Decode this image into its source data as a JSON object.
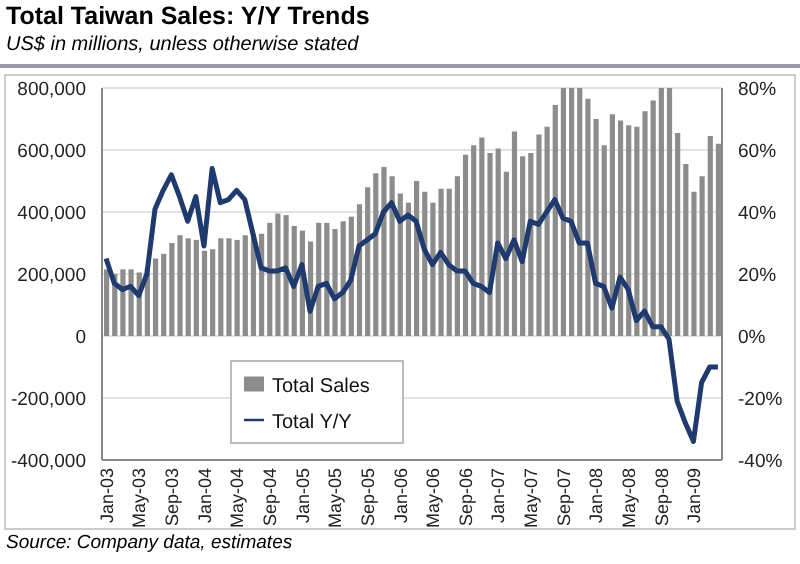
{
  "chart_data": {
    "type": "bar",
    "title": "Total Taiwan Sales: Y/Y Trends",
    "subtitle": "US$ in millions, unless otherwise stated",
    "annotations": [
      "Source: Company data, estimates"
    ],
    "categories": [
      "Jan-03",
      null,
      null,
      null,
      "May-03",
      null,
      null,
      null,
      "Sep-03",
      null,
      null,
      null,
      "Jan-04",
      null,
      null,
      null,
      "May-04",
      null,
      null,
      null,
      "Sep-04",
      null,
      null,
      null,
      "Jan-05",
      null,
      null,
      null,
      "May-05",
      null,
      null,
      null,
      "Sep-05",
      null,
      null,
      null,
      "Jan-06",
      null,
      null,
      null,
      "May-06",
      null,
      null,
      null,
      "Sep-06",
      null,
      null,
      null,
      "Jan-07",
      null,
      null,
      null,
      "May-07",
      null,
      null,
      null,
      "Sep-07",
      null,
      null,
      null,
      "Jan-08",
      null,
      null,
      null,
      "May-08",
      null,
      null,
      null,
      "Sep-08",
      null,
      null,
      null,
      "Jan-09",
      null,
      null,
      null
    ],
    "series": [
      {
        "name": "Total Sales",
        "color": "#8c8c8c",
        "values": [
          215000,
          200000,
          215000,
          215000,
          205000,
          220000,
          250000,
          265000,
          300000,
          325000,
          315000,
          310000,
          275000,
          280000,
          315000,
          315000,
          310000,
          325000,
          330000,
          330000,
          365000,
          395000,
          390000,
          355000,
          340000,
          305000,
          365000,
          365000,
          345000,
          370000,
          385000,
          425000,
          480000,
          525000,
          545000,
          515000,
          460000,
          430000,
          500000,
          465000,
          430000,
          475000,
          475000,
          515000,
          585000,
          615000,
          640000,
          590000,
          605000,
          530000,
          660000,
          580000,
          590000,
          650000,
          675000,
          745000,
          800000,
          800000,
          800000,
          765000,
          700000,
          615000,
          715000,
          695000,
          680000,
          675000,
          725000,
          760000,
          800000,
          800000,
          655000,
          555000,
          465000,
          515000,
          645000,
          620000
        ]
      },
      {
        "name": "Total Y/Y",
        "type": "line",
        "axis": "y2",
        "color": "#1f3a6e",
        "values": [
          25,
          17,
          15,
          16,
          13,
          20,
          41,
          47,
          52,
          45,
          37,
          45,
          29,
          54,
          43,
          44,
          47,
          44,
          33,
          22,
          21,
          21,
          22,
          16,
          23,
          8,
          16,
          17,
          12,
          14,
          18,
          29,
          31,
          33,
          40,
          43,
          37,
          39,
          37,
          28,
          23,
          27,
          23,
          21,
          21,
          17,
          16,
          14,
          30,
          25,
          31,
          24,
          37,
          36,
          40,
          44,
          38,
          37,
          30,
          30,
          17,
          16,
          9,
          19,
          15,
          5,
          8,
          3,
          3,
          -1,
          -21,
          -28,
          -34,
          -15,
          -10,
          -10
        ]
      }
    ],
    "ylim": [
      -400000,
      800000
    ],
    "yticks": [
      {
        "value": -400000,
        "label": "-400,000"
      },
      {
        "value": -200000,
        "label": "-200,000"
      },
      {
        "value": 0,
        "label": "0"
      },
      {
        "value": 200000,
        "label": "200,000"
      },
      {
        "value": 400000,
        "label": "400,000"
      },
      {
        "value": 600000,
        "label": "600,000"
      },
      {
        "value": 800000,
        "label": "800,000"
      }
    ],
    "y2lim": [
      -40,
      80
    ],
    "y2ticks": [
      {
        "value": -40,
        "label": "-40%"
      },
      {
        "value": -20,
        "label": "-20%"
      },
      {
        "value": 0,
        "label": "0%"
      },
      {
        "value": 20,
        "label": "20%"
      },
      {
        "value": 40,
        "label": "40%"
      },
      {
        "value": 60,
        "label": "60%"
      },
      {
        "value": 80,
        "label": "80%"
      }
    ],
    "grid": "y",
    "legend": "bottom left"
  }
}
